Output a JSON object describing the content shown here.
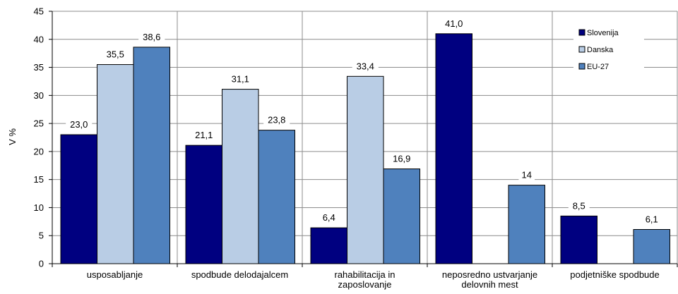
{
  "chart_data": {
    "type": "bar",
    "categories": [
      [
        "usposabljanje"
      ],
      [
        "spodbude delodajalcem"
      ],
      [
        "rahabilitacija in",
        "zaposlovanje"
      ],
      [
        "neposredno ustvarjanje",
        "delovnih mest"
      ],
      [
        "podjetniške spodbude"
      ]
    ],
    "series": [
      {
        "name": "Slovenija",
        "color": "#000080",
        "values": [
          23.0,
          21.1,
          6.4,
          41.0,
          8.5
        ],
        "labels": [
          "23,0",
          "21,1",
          "6,4",
          "41,0",
          "8,5"
        ]
      },
      {
        "name": "Danska",
        "color": "#B9CDE5",
        "values": [
          35.5,
          31.1,
          33.4,
          null,
          null
        ],
        "labels": [
          "35,5",
          "31,1",
          "33,4",
          "",
          ""
        ]
      },
      {
        "name": "EU-27",
        "color": "#4F81BD",
        "values": [
          38.6,
          23.8,
          16.9,
          14,
          6.1
        ],
        "labels": [
          "38,6",
          "23,8",
          "16,9",
          "14",
          "6,1"
        ]
      }
    ],
    "ylabel": "V %",
    "ylim": [
      0,
      45
    ],
    "yticks": [
      0,
      5,
      10,
      15,
      20,
      25,
      30,
      35,
      40,
      45
    ],
    "grid": true,
    "legend": "top-right"
  }
}
